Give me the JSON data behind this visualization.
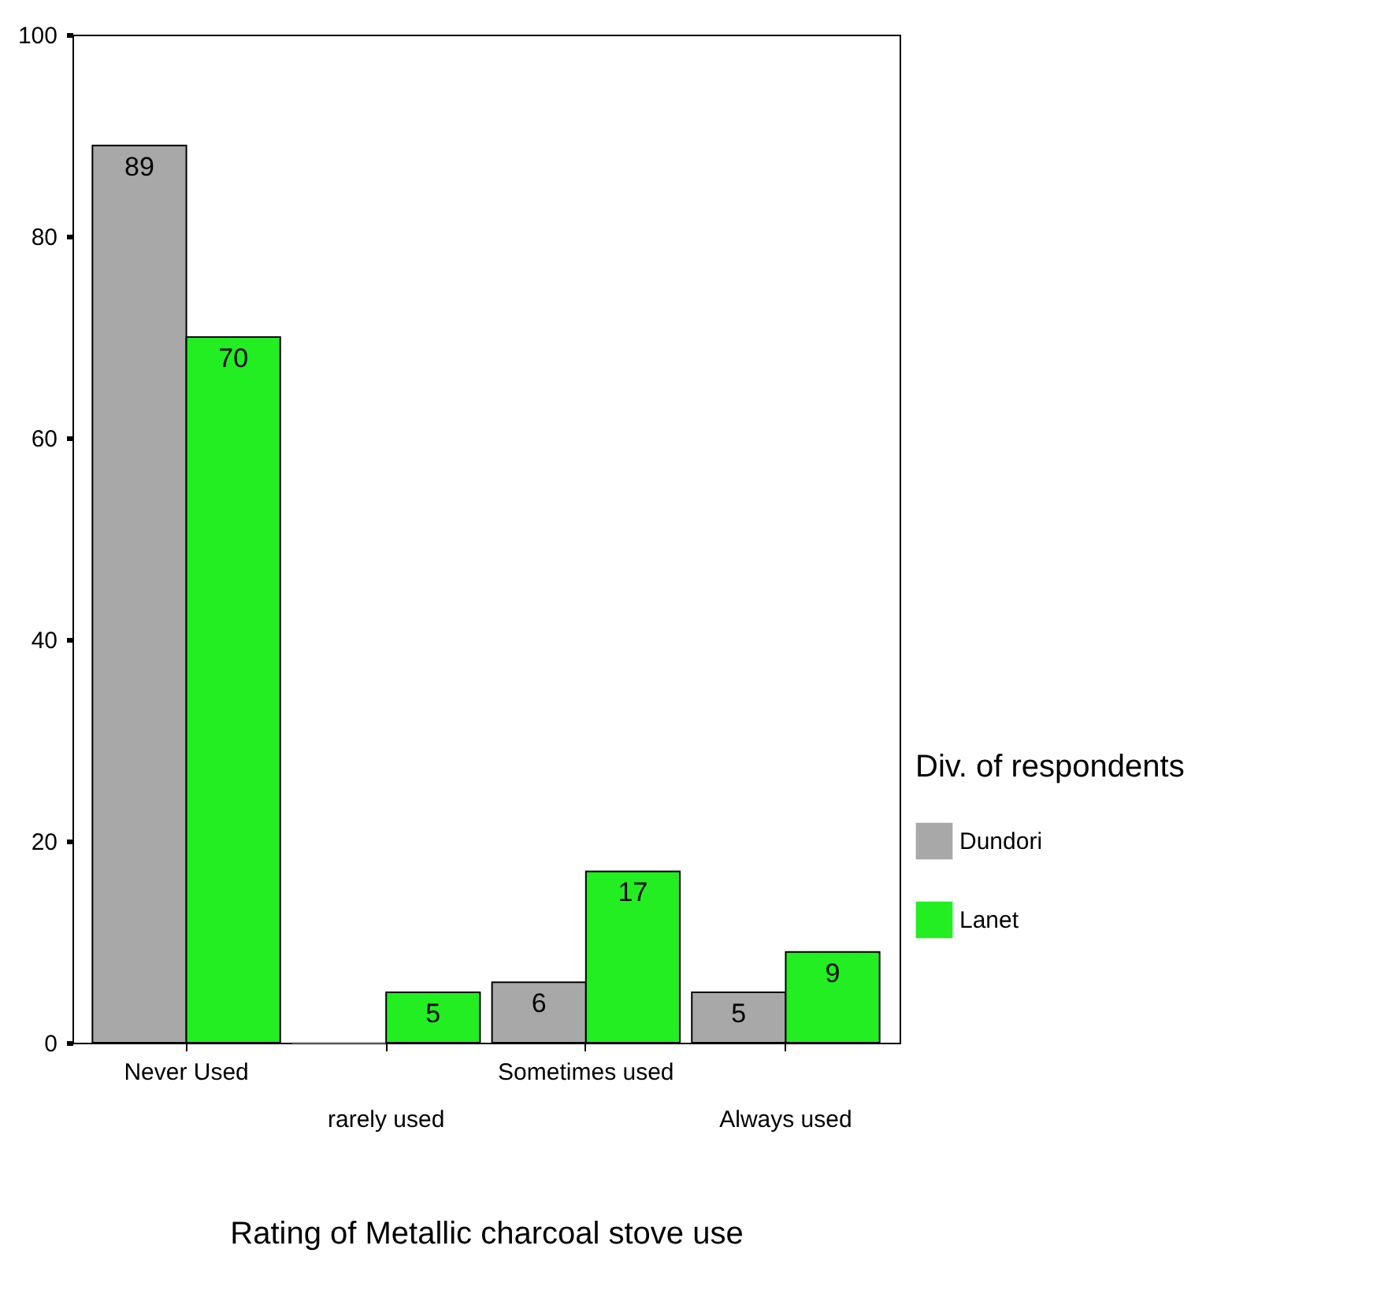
{
  "chart_data": {
    "type": "bar",
    "xlabel": "Rating of Metallic charcoal stove use",
    "legend_title": "Div. of respondents",
    "legend": "right",
    "grid": false,
    "categories": [
      "Never Used",
      "rarely used",
      "Sometimes used",
      "Always used"
    ],
    "series": [
      {
        "name": "Dundori",
        "color": "#a8a8a8",
        "values": [
          89,
          0,
          6,
          5
        ],
        "value_labels": [
          "89",
          null,
          "6",
          "5"
        ]
      },
      {
        "name": "Lanet",
        "color": "#22ee22",
        "values": [
          70,
          5,
          17,
          9
        ],
        "value_labels": [
          "70",
          "5",
          "17",
          "9"
        ]
      }
    ],
    "ylim": [
      0,
      100
    ],
    "yticks": [
      0,
      20,
      40,
      60,
      80,
      100
    ]
  }
}
